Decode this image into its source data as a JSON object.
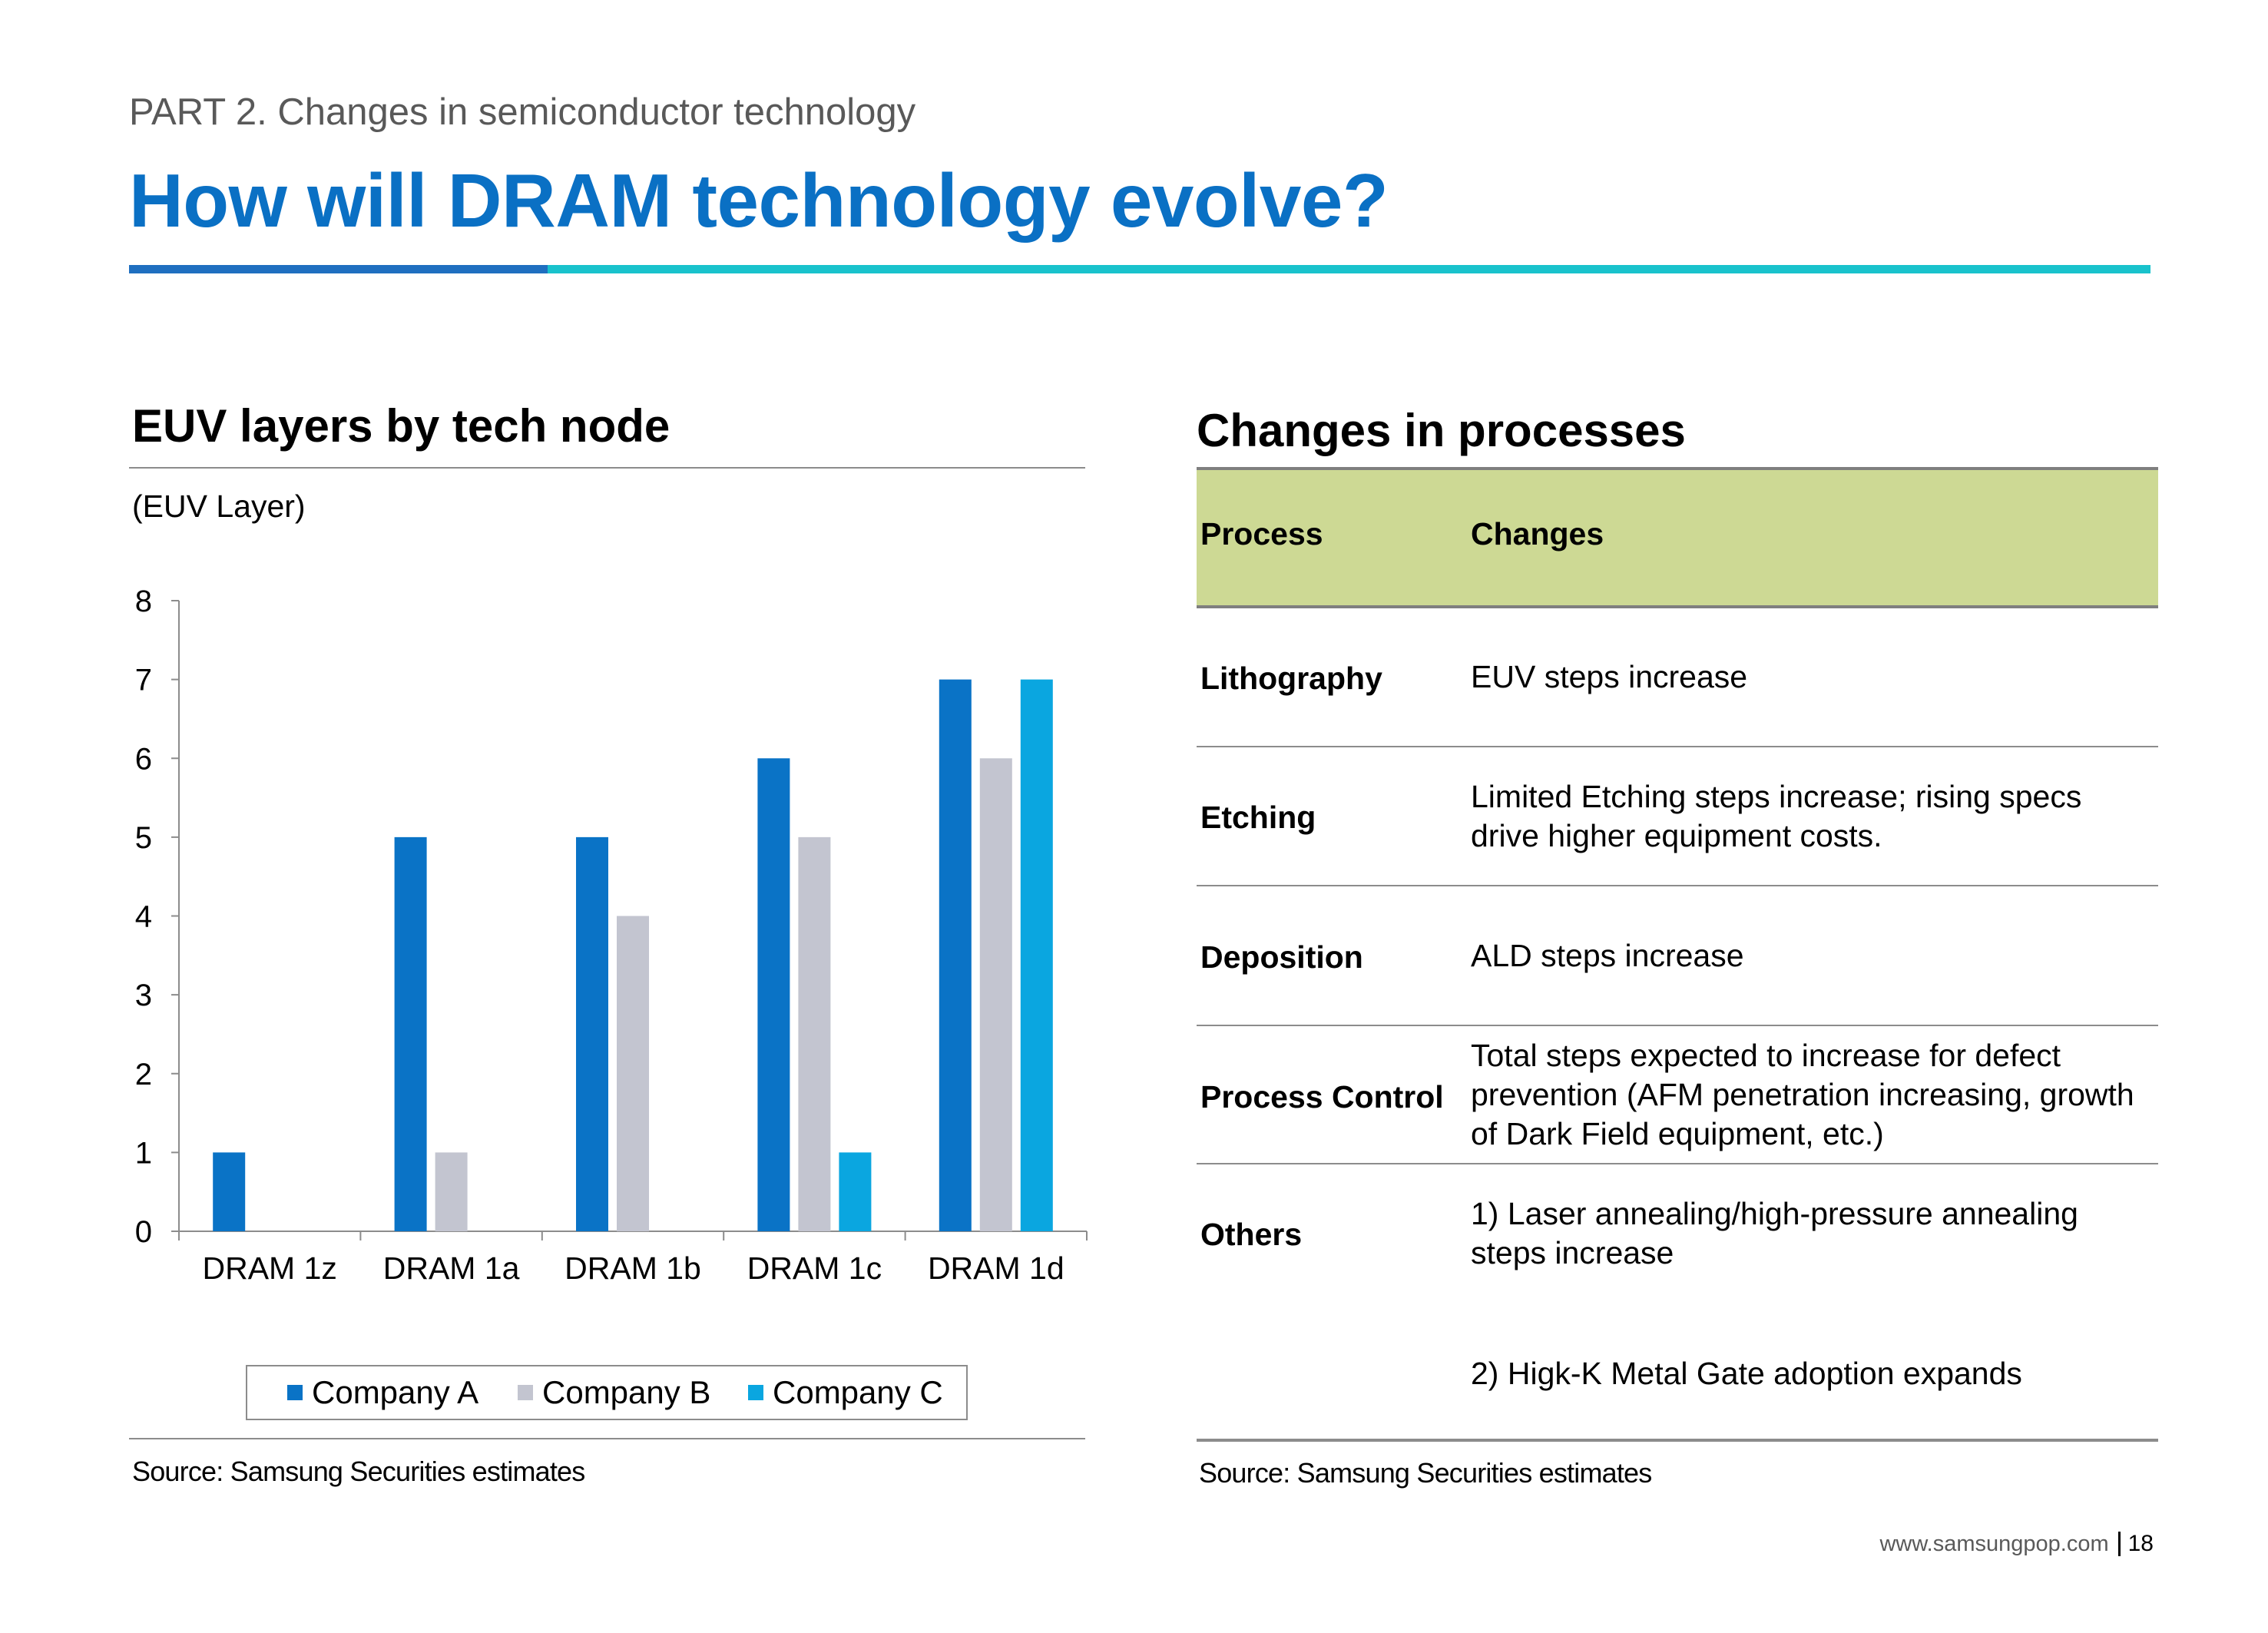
{
  "header": {
    "part_label": "PART 2. Changes in semiconductor technology",
    "title": "How will DRAM technology evolve?"
  },
  "left_panel": {
    "title": "EUV layers by tech node",
    "unit_label": "(EUV Layer)",
    "source": "Source: Samsung Securities estimates"
  },
  "chart_data": {
    "type": "bar",
    "title": "EUV layers by tech node",
    "ylabel": "(EUV Layer)",
    "xlabel": "",
    "ylim": [
      0,
      8
    ],
    "yticks": [
      0,
      1,
      2,
      3,
      4,
      5,
      6,
      7,
      8
    ],
    "categories": [
      "DRAM 1z",
      "DRAM 1a",
      "DRAM 1b",
      "DRAM 1c",
      "DRAM 1d"
    ],
    "series": [
      {
        "name": "Company A",
        "color": "#0a73c6",
        "values": [
          1,
          5,
          5,
          6,
          7
        ]
      },
      {
        "name": "Company B",
        "color": "#c3c5d0",
        "values": [
          0,
          1,
          4,
          5,
          6
        ]
      },
      {
        "name": "Company C",
        "color": "#0aa6e0",
        "values": [
          0,
          0,
          0,
          1,
          7
        ]
      }
    ],
    "legend_position": "bottom",
    "grid": false
  },
  "right_panel": {
    "title": "Changes in processes",
    "header": {
      "process": "Process",
      "changes": "Changes"
    },
    "rows": [
      {
        "process": "Lithography",
        "changes": "EUV steps increase"
      },
      {
        "process": "Etching",
        "changes": "Limited Etching steps increase; rising specs drive higher equipment costs."
      },
      {
        "process": "Deposition",
        "changes": "ALD steps increase"
      },
      {
        "process": "Process Control",
        "changes": "Total steps expected to increase for defect prevention (AFM penetration increasing, growth of Dark Field equipment, etc.)"
      },
      {
        "process": "Others",
        "changes": "1) Laser annealing/high-pressure annealing steps increase",
        "changes_2": "2) Higk-K Metal Gate adoption expands"
      }
    ],
    "source": "Source: Samsung Securities estimates"
  },
  "footer": {
    "url": "www.samsungpop.com",
    "page": "18"
  },
  "colors": {
    "title_blue": "#0a70c4",
    "rule_dark": "#1f6fc0",
    "rule_light": "#19c2cc",
    "table_header_bg": "#cdd994"
  }
}
